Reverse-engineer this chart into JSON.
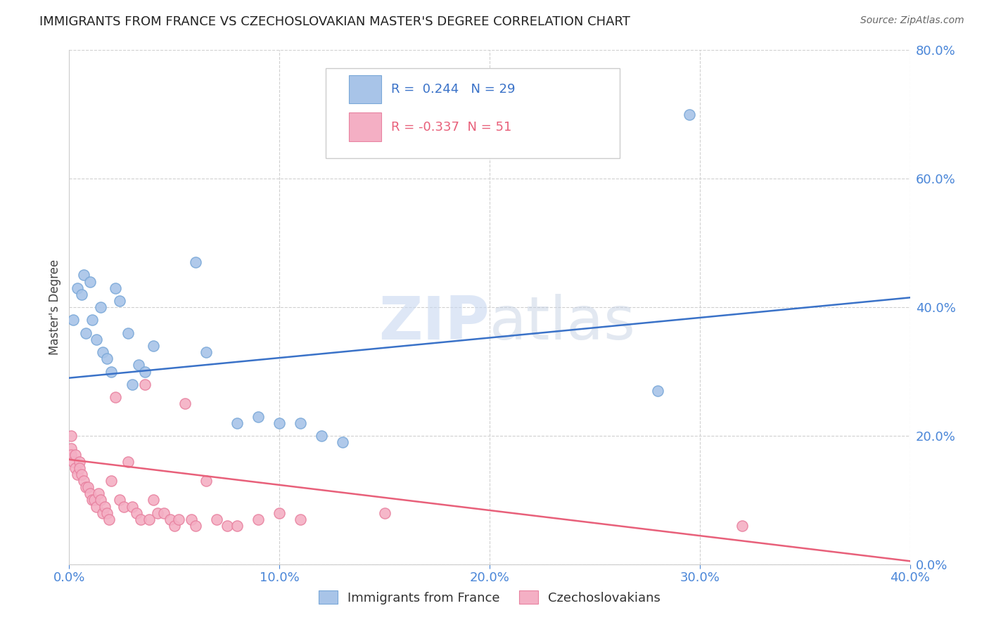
{
  "title": "IMMIGRANTS FROM FRANCE VS CZECHOSLOVAKIAN MASTER'S DEGREE CORRELATION CHART",
  "source": "Source: ZipAtlas.com",
  "ylabel": "Master's Degree",
  "xlim": [
    0.0,
    0.4
  ],
  "ylim": [
    0.0,
    0.8
  ],
  "yticks": [
    0.0,
    0.2,
    0.4,
    0.6,
    0.8
  ],
  "xticks": [
    0.0,
    0.1,
    0.2,
    0.3,
    0.4
  ],
  "blue_label": "Immigrants from France",
  "pink_label": "Czechoslovakians",
  "blue_R": "0.244",
  "blue_N": "29",
  "pink_R": "-0.337",
  "pink_N": "51",
  "blue_color": "#a8c4e8",
  "pink_color": "#f4afc4",
  "blue_edge_color": "#7aa8d8",
  "pink_edge_color": "#e882a0",
  "blue_line_color": "#3a72c8",
  "pink_line_color": "#e8607a",
  "blue_scatter": [
    [
      0.002,
      0.38
    ],
    [
      0.004,
      0.43
    ],
    [
      0.006,
      0.42
    ],
    [
      0.007,
      0.45
    ],
    [
      0.008,
      0.36
    ],
    [
      0.01,
      0.44
    ],
    [
      0.011,
      0.38
    ],
    [
      0.013,
      0.35
    ],
    [
      0.015,
      0.4
    ],
    [
      0.016,
      0.33
    ],
    [
      0.018,
      0.32
    ],
    [
      0.02,
      0.3
    ],
    [
      0.022,
      0.43
    ],
    [
      0.024,
      0.41
    ],
    [
      0.028,
      0.36
    ],
    [
      0.03,
      0.28
    ],
    [
      0.033,
      0.31
    ],
    [
      0.036,
      0.3
    ],
    [
      0.04,
      0.34
    ],
    [
      0.06,
      0.47
    ],
    [
      0.065,
      0.33
    ],
    [
      0.08,
      0.22
    ],
    [
      0.09,
      0.23
    ],
    [
      0.1,
      0.22
    ],
    [
      0.11,
      0.22
    ],
    [
      0.12,
      0.2
    ],
    [
      0.13,
      0.19
    ],
    [
      0.28,
      0.27
    ],
    [
      0.295,
      0.7
    ]
  ],
  "pink_scatter": [
    [
      0.001,
      0.2
    ],
    [
      0.001,
      0.18
    ],
    [
      0.001,
      0.17
    ],
    [
      0.002,
      0.16
    ],
    [
      0.003,
      0.17
    ],
    [
      0.003,
      0.15
    ],
    [
      0.004,
      0.14
    ],
    [
      0.005,
      0.16
    ],
    [
      0.005,
      0.15
    ],
    [
      0.006,
      0.14
    ],
    [
      0.007,
      0.13
    ],
    [
      0.008,
      0.12
    ],
    [
      0.009,
      0.12
    ],
    [
      0.01,
      0.11
    ],
    [
      0.011,
      0.1
    ],
    [
      0.012,
      0.1
    ],
    [
      0.013,
      0.09
    ],
    [
      0.014,
      0.11
    ],
    [
      0.015,
      0.1
    ],
    [
      0.016,
      0.08
    ],
    [
      0.017,
      0.09
    ],
    [
      0.018,
      0.08
    ],
    [
      0.019,
      0.07
    ],
    [
      0.02,
      0.13
    ],
    [
      0.022,
      0.26
    ],
    [
      0.024,
      0.1
    ],
    [
      0.026,
      0.09
    ],
    [
      0.028,
      0.16
    ],
    [
      0.03,
      0.09
    ],
    [
      0.032,
      0.08
    ],
    [
      0.034,
      0.07
    ],
    [
      0.036,
      0.28
    ],
    [
      0.038,
      0.07
    ],
    [
      0.04,
      0.1
    ],
    [
      0.042,
      0.08
    ],
    [
      0.045,
      0.08
    ],
    [
      0.048,
      0.07
    ],
    [
      0.05,
      0.06
    ],
    [
      0.052,
      0.07
    ],
    [
      0.055,
      0.25
    ],
    [
      0.058,
      0.07
    ],
    [
      0.06,
      0.06
    ],
    [
      0.065,
      0.13
    ],
    [
      0.07,
      0.07
    ],
    [
      0.075,
      0.06
    ],
    [
      0.08,
      0.06
    ],
    [
      0.09,
      0.07
    ],
    [
      0.1,
      0.08
    ],
    [
      0.11,
      0.07
    ],
    [
      0.15,
      0.08
    ],
    [
      0.32,
      0.06
    ]
  ],
  "blue_line_x": [
    0.0,
    0.4
  ],
  "blue_line_y": [
    0.29,
    0.415
  ],
  "pink_line_x": [
    0.0,
    0.4
  ],
  "pink_line_y": [
    0.163,
    0.005
  ],
  "watermark_zip": "ZIP",
  "watermark_atlas": "atlas",
  "background_color": "#ffffff",
  "grid_color": "#d0d0d0",
  "title_fontsize": 13,
  "axis_label_color": "#4a86d8",
  "tick_label_color": "#4a86d8",
  "marker_size": 120,
  "marker_linewidth": 1.0
}
